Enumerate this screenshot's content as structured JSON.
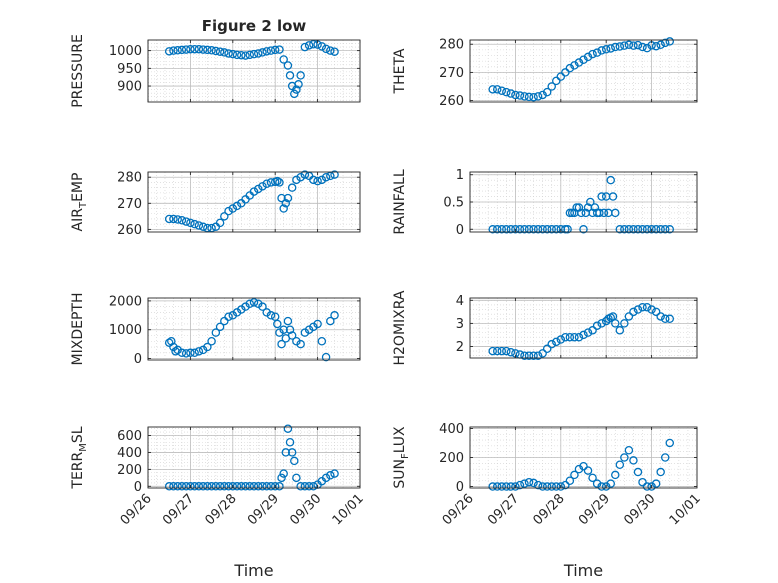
{
  "figure_title": "Figure 2 low",
  "colors": {
    "marker": "#0072BD",
    "axis": "#262626",
    "grid": "#bdbdbd",
    "background": "#ffffff"
  },
  "chart_data": [
    {
      "type": "scatter",
      "title": "Figure 2 low",
      "ylabel": "PRESSURE",
      "xlabel": "",
      "xlim": [
        0,
        5
      ],
      "ylim": [
        855,
        1030
      ],
      "yticks": [
        900,
        950,
        1000
      ],
      "ytick_labels": [
        "900",
        "950",
        "1000"
      ],
      "xticks": [
        0,
        1,
        2,
        3,
        4,
        5
      ],
      "xtick_labels": [],
      "grid": true,
      "marker": "circle-open",
      "x": [
        0.5,
        0.6,
        0.7,
        0.8,
        0.9,
        1.0,
        1.1,
        1.2,
        1.3,
        1.4,
        1.5,
        1.6,
        1.7,
        1.8,
        1.9,
        2.0,
        2.1,
        2.2,
        2.3,
        2.4,
        2.5,
        2.6,
        2.7,
        2.8,
        2.9,
        3.0,
        3.1,
        3.2,
        3.3,
        3.35,
        3.4,
        3.45,
        3.5,
        3.55,
        3.6,
        3.7,
        3.8,
        3.9,
        4.0,
        4.1,
        4.2,
        4.3,
        4.4
      ],
      "y": [
        998,
        1000,
        1001,
        1002,
        1003,
        1004,
        1004,
        1004,
        1003,
        1002,
        1001,
        999,
        997,
        995,
        992,
        990,
        988,
        987,
        986,
        988,
        990,
        992,
        995,
        998,
        1000,
        1002,
        1003,
        975,
        958,
        930,
        900,
        878,
        890,
        905,
        930,
        1010,
        1015,
        1018,
        1017,
        1012,
        1005,
        1000,
        997
      ]
    },
    {
      "type": "scatter",
      "ylabel": "THETA",
      "xlabel": "",
      "xlim": [
        0,
        5
      ],
      "ylim": [
        259.5,
        281.5
      ],
      "yticks": [
        260,
        270,
        280
      ],
      "ytick_labels": [
        "260",
        "270",
        "280"
      ],
      "xticks": [
        0,
        1,
        2,
        3,
        4,
        5
      ],
      "xtick_labels": [],
      "grid": true,
      "marker": "circle-open",
      "x": [
        0.5,
        0.6,
        0.7,
        0.8,
        0.9,
        1.0,
        1.1,
        1.2,
        1.3,
        1.4,
        1.5,
        1.6,
        1.7,
        1.8,
        1.9,
        2.0,
        2.1,
        2.2,
        2.3,
        2.4,
        2.5,
        2.6,
        2.7,
        2.8,
        2.9,
        3.0,
        3.1,
        3.2,
        3.3,
        3.4,
        3.5,
        3.6,
        3.7,
        3.8,
        3.9,
        4.0,
        4.1,
        4.2,
        4.3,
        4.4
      ],
      "y": [
        264,
        264,
        263.5,
        263,
        262.5,
        262,
        261.8,
        261.5,
        261.3,
        261.2,
        261.5,
        262,
        263,
        265,
        267,
        268.5,
        270,
        271.5,
        272.5,
        273.5,
        274.5,
        275.5,
        276.5,
        277,
        277.8,
        278.2,
        278.5,
        279,
        279.2,
        279.5,
        279.8,
        279.5,
        279.7,
        279,
        278.6,
        279.6,
        279.3,
        279.8,
        280.5,
        281
      ]
    },
    {
      "type": "scatter",
      "ylabel": "AIR_TEMP",
      "xlabel": "",
      "xlim": [
        0,
        5
      ],
      "ylim": [
        259,
        282
      ],
      "yticks": [
        260,
        270,
        280
      ],
      "ytick_labels": [
        "260",
        "270",
        "280"
      ],
      "xticks": [
        0,
        1,
        2,
        3,
        4,
        5
      ],
      "xtick_labels": [],
      "grid": true,
      "marker": "circle-open",
      "x": [
        0.5,
        0.6,
        0.7,
        0.8,
        0.9,
        1.0,
        1.1,
        1.2,
        1.3,
        1.4,
        1.5,
        1.6,
        1.7,
        1.8,
        1.9,
        2.0,
        2.1,
        2.2,
        2.3,
        2.4,
        2.5,
        2.6,
        2.7,
        2.8,
        2.9,
        3.0,
        3.05,
        3.1,
        3.15,
        3.2,
        3.25,
        3.3,
        3.4,
        3.5,
        3.6,
        3.7,
        3.8,
        3.9,
        4.0,
        4.1,
        4.2,
        4.3,
        4.4
      ],
      "y": [
        264,
        264,
        263.8,
        263.5,
        263,
        262.5,
        262,
        261.5,
        261,
        260.5,
        260.5,
        261,
        262.5,
        265,
        267,
        268,
        269,
        270,
        271.5,
        273,
        274.5,
        275.5,
        276.5,
        277.5,
        278,
        278.2,
        278.5,
        278,
        272,
        268,
        270,
        272,
        276,
        279,
        280,
        281,
        280.5,
        279,
        278.5,
        279,
        280,
        280.5,
        281
      ]
    },
    {
      "type": "scatter",
      "ylabel": "RAINFALL",
      "xlabel": "",
      "xlim": [
        0,
        5
      ],
      "ylim": [
        -0.05,
        1.05
      ],
      "yticks": [
        0,
        0.5,
        1
      ],
      "ytick_labels": [
        "0",
        "0.5",
        "1"
      ],
      "xticks": [
        0,
        1,
        2,
        3,
        4,
        5
      ],
      "xtick_labels": [],
      "grid": true,
      "marker": "circle-open",
      "x": [
        0.5,
        0.6,
        0.7,
        0.8,
        0.9,
        1.0,
        1.1,
        1.2,
        1.3,
        1.4,
        1.5,
        1.6,
        1.7,
        1.8,
        1.9,
        2.0,
        2.1,
        2.15,
        2.2,
        2.25,
        2.3,
        2.35,
        2.4,
        2.45,
        2.5,
        2.55,
        2.6,
        2.65,
        2.7,
        2.75,
        2.8,
        2.85,
        2.9,
        2.95,
        3.0,
        3.05,
        3.1,
        3.15,
        3.2,
        3.3,
        3.4,
        3.5,
        3.6,
        3.7,
        3.8,
        3.9,
        4.0,
        4.1,
        4.2,
        4.3,
        4.4
      ],
      "y": [
        0,
        0,
        0,
        0,
        0,
        0,
        0,
        0,
        0,
        0,
        0,
        0,
        0,
        0,
        0,
        0,
        0,
        0,
        0.3,
        0.3,
        0.3,
        0.4,
        0.4,
        0.3,
        0,
        0.3,
        0.4,
        0.5,
        0.3,
        0.4,
        0.3,
        0.3,
        0.6,
        0.3,
        0.6,
        0.3,
        0.9,
        0.6,
        0.3,
        0,
        0,
        0,
        0,
        0,
        0,
        0,
        0,
        0,
        0,
        0,
        0
      ]
    },
    {
      "type": "scatter",
      "ylabel": "MIXDEPTH",
      "xlabel": "",
      "xlim": [
        0,
        5
      ],
      "ylim": [
        -50,
        2100
      ],
      "yticks": [
        0,
        1000,
        2000
      ],
      "ytick_labels": [
        "0",
        "1000",
        "2000"
      ],
      "xticks": [
        0,
        1,
        2,
        3,
        4,
        5
      ],
      "xtick_labels": [],
      "grid": true,
      "marker": "circle-open",
      "x": [
        0.5,
        0.55,
        0.6,
        0.65,
        0.7,
        0.8,
        0.9,
        1.0,
        1.1,
        1.2,
        1.3,
        1.4,
        1.5,
        1.6,
        1.7,
        1.8,
        1.9,
        2.0,
        2.1,
        2.2,
        2.3,
        2.4,
        2.5,
        2.6,
        2.7,
        2.8,
        2.9,
        3.0,
        3.05,
        3.1,
        3.15,
        3.2,
        3.25,
        3.3,
        3.35,
        3.4,
        3.5,
        3.6,
        3.7,
        3.8,
        3.9,
        4.0,
        4.1,
        4.2,
        4.3,
        4.4
      ],
      "y": [
        550,
        600,
        400,
        250,
        300,
        200,
        180,
        200,
        200,
        250,
        300,
        400,
        600,
        900,
        1100,
        1300,
        1450,
        1500,
        1600,
        1700,
        1800,
        1900,
        1950,
        1900,
        1800,
        1600,
        1500,
        1450,
        1200,
        900,
        500,
        1000,
        700,
        1300,
        1000,
        800,
        600,
        500,
        900,
        1000,
        1100,
        1200,
        600,
        50,
        1300,
        1500
      ]
    },
    {
      "type": "scatter",
      "ylabel": "H2OMIXRA",
      "xlabel": "",
      "xlim": [
        0,
        5
      ],
      "ylim": [
        1.5,
        4.1
      ],
      "yticks": [
        2,
        3,
        4
      ],
      "ytick_labels": [
        "2",
        "3",
        "4"
      ],
      "xticks": [
        0,
        1,
        2,
        3,
        4,
        5
      ],
      "xtick_labels": [],
      "grid": true,
      "marker": "circle-open",
      "x": [
        0.5,
        0.6,
        0.7,
        0.8,
        0.9,
        1.0,
        1.1,
        1.2,
        1.3,
        1.4,
        1.5,
        1.6,
        1.7,
        1.8,
        1.9,
        2.0,
        2.1,
        2.2,
        2.3,
        2.4,
        2.5,
        2.6,
        2.7,
        2.8,
        2.9,
        3.0,
        3.05,
        3.1,
        3.15,
        3.2,
        3.3,
        3.4,
        3.5,
        3.6,
        3.7,
        3.8,
        3.9,
        4.0,
        4.1,
        4.2,
        4.3,
        4.4
      ],
      "y": [
        1.8,
        1.8,
        1.8,
        1.8,
        1.75,
        1.7,
        1.65,
        1.6,
        1.6,
        1.6,
        1.6,
        1.7,
        1.9,
        2.1,
        2.2,
        2.3,
        2.4,
        2.4,
        2.4,
        2.4,
        2.5,
        2.6,
        2.7,
        2.9,
        3.0,
        3.1,
        3.2,
        3.25,
        3.3,
        3.0,
        2.7,
        3.0,
        3.3,
        3.5,
        3.6,
        3.7,
        3.7,
        3.6,
        3.5,
        3.3,
        3.2,
        3.2
      ]
    },
    {
      "type": "scatter",
      "ylabel": "TERR_MSL",
      "xlabel": "Time",
      "xlim": [
        0,
        5
      ],
      "ylim": [
        -20,
        700
      ],
      "yticks": [
        0,
        200,
        400,
        600
      ],
      "ytick_labels": [
        "0",
        "200",
        "400",
        "600"
      ],
      "xticks": [
        0,
        1,
        2,
        3,
        4,
        5
      ],
      "xtick_labels": [
        "09/26",
        "09/27",
        "09/28",
        "09/29",
        "09/30",
        "10/01"
      ],
      "grid": true,
      "marker": "circle-open",
      "x": [
        0.5,
        0.6,
        0.7,
        0.8,
        0.9,
        1.0,
        1.1,
        1.2,
        1.3,
        1.4,
        1.5,
        1.6,
        1.7,
        1.8,
        1.9,
        2.0,
        2.1,
        2.2,
        2.3,
        2.4,
        2.5,
        2.6,
        2.7,
        2.8,
        2.9,
        3.0,
        3.1,
        3.15,
        3.2,
        3.25,
        3.3,
        3.35,
        3.4,
        3.45,
        3.5,
        3.6,
        3.7,
        3.8,
        3.9,
        4.0,
        4.1,
        4.2,
        4.3,
        4.4
      ],
      "y": [
        0,
        0,
        0,
        0,
        0,
        0,
        0,
        0,
        0,
        0,
        0,
        0,
        0,
        0,
        0,
        0,
        0,
        0,
        0,
        0,
        0,
        0,
        0,
        0,
        0,
        0,
        0,
        100,
        150,
        400,
        680,
        520,
        400,
        300,
        100,
        0,
        0,
        0,
        0,
        20,
        60,
        100,
        130,
        150
      ]
    },
    {
      "type": "scatter",
      "ylabel": "SUN_FLUX",
      "xlabel": "Time",
      "xlim": [
        0,
        5
      ],
      "ylim": [
        -10,
        410
      ],
      "yticks": [
        0,
        200,
        400
      ],
      "ytick_labels": [
        "0",
        "200",
        "400"
      ],
      "xticks": [
        0,
        1,
        2,
        3,
        4,
        5
      ],
      "xtick_labels": [
        "09/26",
        "09/27",
        "09/28",
        "09/29",
        "09/30",
        "10/01"
      ],
      "grid": true,
      "marker": "circle-open",
      "x": [
        0.5,
        0.6,
        0.7,
        0.8,
        0.9,
        1.0,
        1.1,
        1.2,
        1.3,
        1.4,
        1.5,
        1.6,
        1.7,
        1.8,
        1.9,
        2.0,
        2.1,
        2.2,
        2.3,
        2.4,
        2.5,
        2.6,
        2.7,
        2.8,
        2.9,
        3.0,
        3.1,
        3.2,
        3.3,
        3.4,
        3.5,
        3.6,
        3.7,
        3.8,
        3.9,
        4.0,
        4.1,
        4.2,
        4.3,
        4.4
      ],
      "y": [
        0,
        0,
        0,
        0,
        0,
        0,
        10,
        20,
        30,
        25,
        10,
        0,
        0,
        0,
        0,
        0,
        10,
        40,
        80,
        120,
        140,
        110,
        60,
        20,
        0,
        0,
        20,
        80,
        150,
        200,
        250,
        180,
        100,
        30,
        0,
        0,
        20,
        100,
        200,
        300
      ]
    }
  ]
}
